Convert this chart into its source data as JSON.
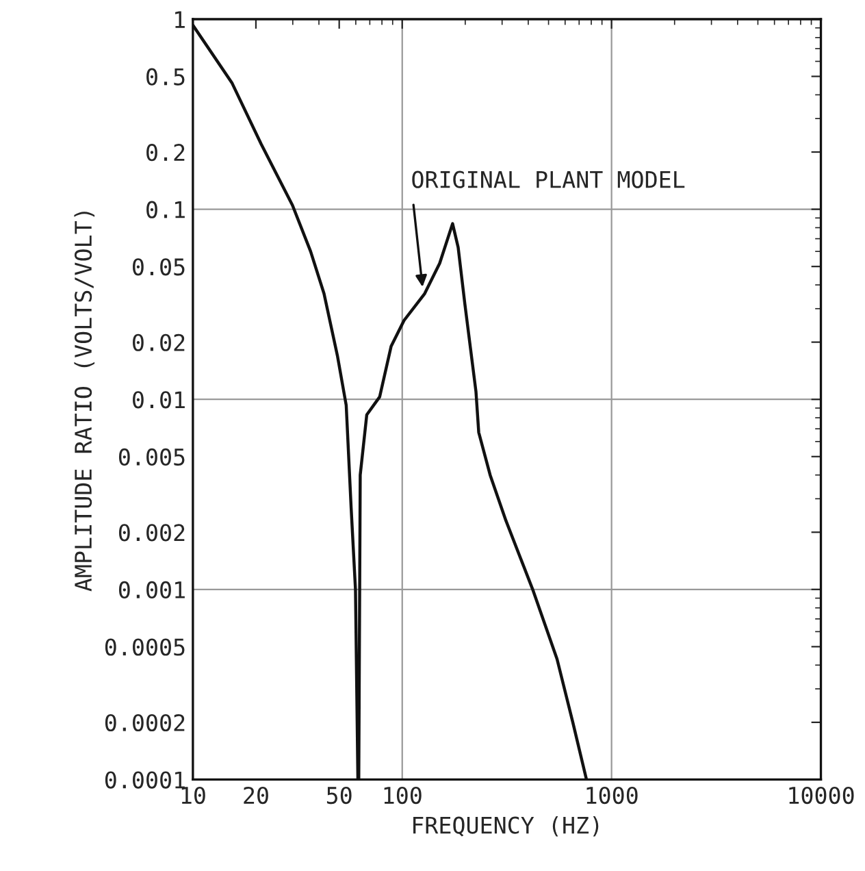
{
  "chart_data": {
    "type": "line",
    "xlabel": "FREQUENCY (HZ)",
    "ylabel": "AMPLITUDE RATIO (VOLTS/VOLT)",
    "log": "xy",
    "grid": true,
    "line_style": "solid",
    "marker": "none",
    "xlim": [
      10,
      10000
    ],
    "xticks": [
      10,
      20,
      50,
      100,
      1000,
      10000
    ],
    "ylim": [
      0.0001,
      1
    ],
    "yticks": [
      0.0001,
      0.0002,
      0.0005,
      0.001,
      0.002,
      0.005,
      0.01,
      0.02,
      0.05,
      0.1,
      0.2,
      0.5,
      1
    ],
    "series": [
      {
        "color": "#111111",
        "x": [
          10,
          15.4,
          21.2,
          29.9,
          36.5,
          42.3,
          49,
          54,
          57,
          59.8,
          61.4,
          62,
          63,
          67.7,
          78,
          88.5,
          102,
          128,
          151,
          174,
          185,
          199,
          225,
          232,
          263,
          313,
          420,
          549,
          653,
          759
        ],
        "values": [
          0.93,
          0.46,
          0.22,
          0.105,
          0.06,
          0.036,
          0.017,
          0.0093,
          0.0027,
          0.001,
          0.0001,
          0.0001,
          0.004,
          0.0083,
          0.0103,
          0.019,
          0.026,
          0.036,
          0.052,
          0.084,
          0.063,
          0.032,
          0.011,
          0.0067,
          0.004,
          0.0023,
          0.001,
          0.00043,
          0.0002,
          0.0001
        ]
      }
    ],
    "annotations": [
      {
        "text": "ORIGINAL PLANT MODEL",
        "x": 125,
        "y": 0.039
      }
    ]
  }
}
